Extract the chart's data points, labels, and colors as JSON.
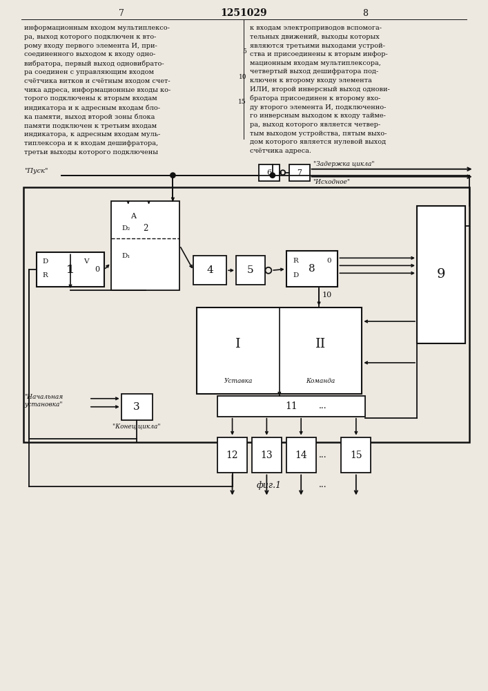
{
  "bg_color": "#ede8e0",
  "lc": "#111111",
  "tc": "#111111",
  "page_num_left": "7",
  "page_num_center": "1251029",
  "page_num_right": "8",
  "fig_caption": "фиг.1",
  "left_col_text": "информационным входом мультиплексо-\nра, выход которого подключен к вто-\nрому входу первого элемента И, при-\nсоединенного выходом к входу одно-\nвибратора, первый выход одновибрато-\nра соединен с управляющим входом\nсчётчика витков и счётным входом счет-\nчика адреса, информационные входы ко-\nторого подключены к вторым входам\nиндикатора и к адресным входам бло-\nка памяти, выход второй зоны блока\nпамяти подключен к третьим входам\nиндикатора, к адресным входам муль-\nтиплексора и к входам дешифратора,\nтретьи выходы которого подключены",
  "right_col_text": "к входам электроприводов вспомога-\nтельных движений, выходы которых\nявляются третьими выходами устрой-\nства и присоединены к вторым инфор-\nмационным входам мультиплексора,\nчетвертый выход дешифратора под-\nключен к второму входу элемента\nИЛИ, второй инверсный выход однови-\nбратора присоединен к второму вхо-\nду второго элемента И, подключенно-\nго инверсным выходом к входу тайме-\nра, выход которого является четвер-\nтым выходом устройства, пятым выхо-\nдом которого является нулевой выход\nсчётчика адреса."
}
